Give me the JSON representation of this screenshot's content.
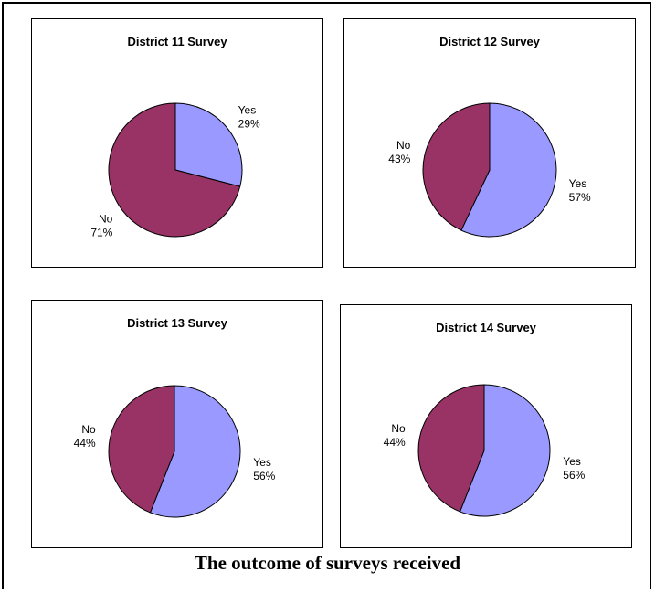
{
  "caption": "The outcome of surveys received",
  "colors": {
    "yes": "#9999FF",
    "no": "#993366",
    "stroke": "#000000"
  },
  "chart_data": [
    {
      "type": "pie",
      "title": "District 11 Survey",
      "categories": [
        "Yes",
        "No"
      ],
      "values": [
        29,
        71
      ],
      "labels": [
        "29%",
        "71%"
      ]
    },
    {
      "type": "pie",
      "title": "District 12 Survey",
      "categories": [
        "Yes",
        "No"
      ],
      "values": [
        57,
        43
      ],
      "labels": [
        "57%",
        "43%"
      ]
    },
    {
      "type": "pie",
      "title": "District 13 Survey",
      "categories": [
        "Yes",
        "No"
      ],
      "values": [
        56,
        44
      ],
      "labels": [
        "56%",
        "44%"
      ]
    },
    {
      "type": "pie",
      "title": "District 14 Survey",
      "categories": [
        "Yes",
        "No"
      ],
      "values": [
        56,
        44
      ],
      "labels": [
        "56%",
        "44%"
      ]
    }
  ]
}
